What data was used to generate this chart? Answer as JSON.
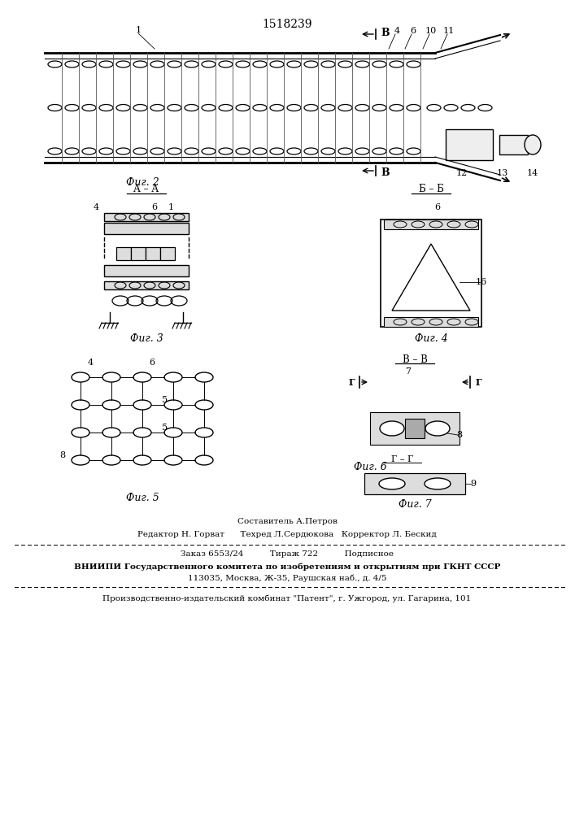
{
  "patent_number": "1518239",
  "background_color": "#ffffff",
  "line_color": "#000000",
  "fig_labels": {
    "fig2": "Фиг. 2",
    "fig3": "Фиг. 3",
    "fig4": "Фиг. 4",
    "fig5": "Фиг. 5",
    "fig6": "Фиг. 6",
    "fig7": "Фиг. 7"
  }
}
